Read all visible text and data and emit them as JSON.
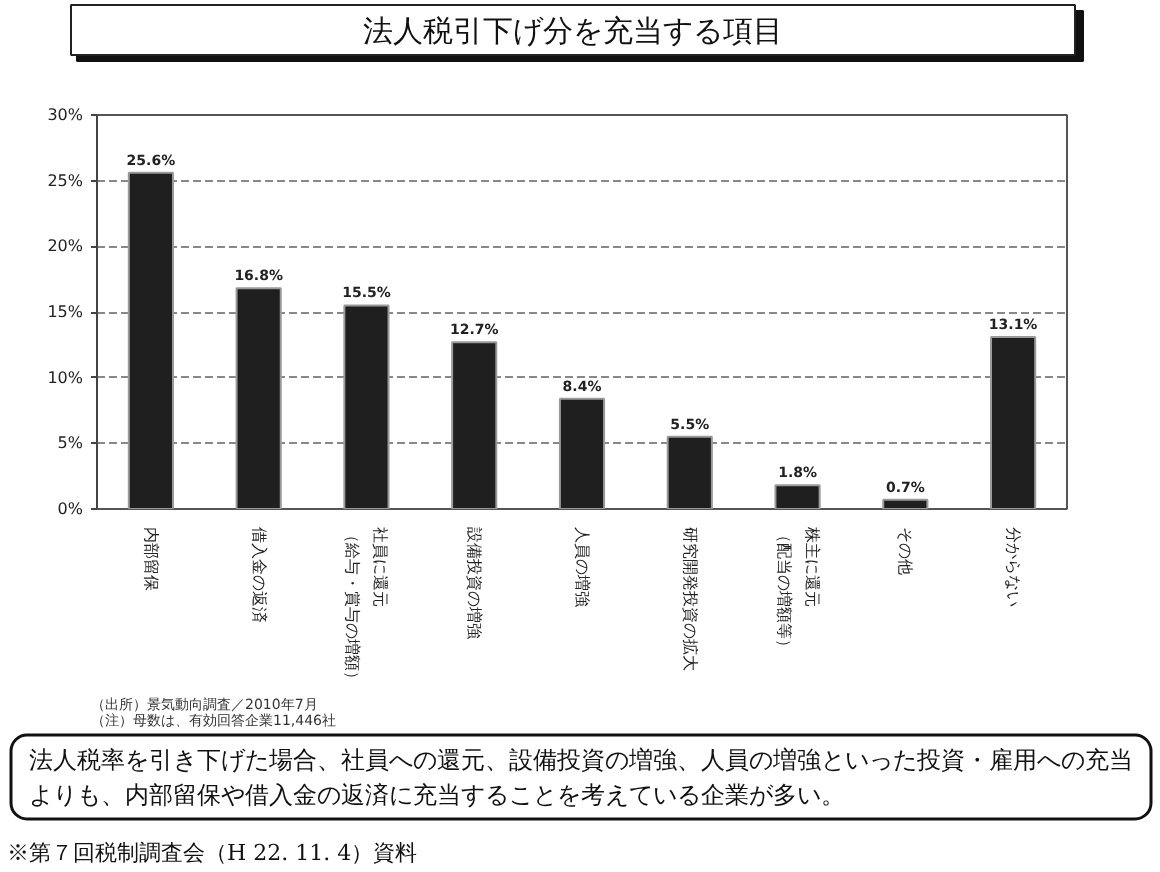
{
  "chart_data": {
    "type": "bar",
    "title": "法人税引下げ分を充当する項目",
    "categories": [
      "内部留保",
      "借入金の返済",
      "社員に還元（給与・賞与の増額）",
      "設備投資の増強",
      "人員の増強",
      "研究開発投資の拡大",
      "株主に還元（配当の増額等）",
      "その他",
      "分からない"
    ],
    "values": [
      25.6,
      16.8,
      15.5,
      12.7,
      8.4,
      5.5,
      1.8,
      0.7,
      13.1
    ],
    "value_labels": [
      "25.6%",
      "16.8%",
      "15.5%",
      "12.7%",
      "8.4%",
      "5.5%",
      "1.8%",
      "0.7%",
      "13.1%"
    ],
    "color": "#1f1f1f",
    "ylim": [
      0,
      30
    ],
    "yticks": [
      {
        "value": 0,
        "label": "0%"
      },
      {
        "value": 5,
        "label": "5%"
      },
      {
        "value": 10,
        "label": "10%"
      },
      {
        "value": 15,
        "label": "15%"
      },
      {
        "value": 20,
        "label": "20%"
      },
      {
        "value": 25,
        "label": "25%"
      },
      {
        "value": 30,
        "label": "30%"
      }
    ],
    "grid": "y",
    "annotations": [
      "（出所）景気動向調査／2010年7月",
      "（注）母数は、有効回答企業11,446社",
      "法人税率を引き下げた場合、社員への還元、設備投資の増強、人員の増強といった投資・雇用への充当よりも、内部留保や借入金の返済に充当することを考えている企業が多い。",
      "※第７回税制調査会（H 22. 11. 4）資料"
    ]
  }
}
